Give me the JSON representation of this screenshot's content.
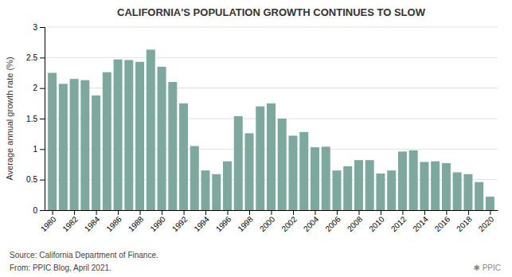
{
  "chart_data": {
    "type": "bar",
    "title": "CALIFORNIA'S POPULATION GROWTH CONTINUES TO SLOW",
    "ylabel": "Average annual growth rate (%)",
    "annotations": [
      "Source: California Department of Finance.",
      "From: PPIC Blog, April 2021.",
      "✱ PPIC"
    ],
    "color": "#7da89e",
    "x": [
      1980,
      1981,
      1982,
      1983,
      1984,
      1985,
      1986,
      1987,
      1988,
      1989,
      1990,
      1991,
      1992,
      1993,
      1994,
      1995,
      1996,
      1997,
      1998,
      1999,
      2000,
      2001,
      2002,
      2003,
      2004,
      2005,
      2006,
      2007,
      2008,
      2009,
      2010,
      2011,
      2012,
      2013,
      2014,
      2015,
      2016,
      2017,
      2018,
      2019,
      2020
    ],
    "values": [
      2.25,
      2.07,
      2.15,
      2.13,
      1.88,
      2.26,
      2.47,
      2.46,
      2.43,
      2.63,
      2.35,
      2.1,
      1.75,
      1.05,
      0.65,
      0.59,
      0.8,
      1.54,
      1.26,
      1.7,
      1.75,
      1.5,
      1.22,
      1.28,
      1.03,
      1.04,
      0.65,
      0.72,
      0.82,
      0.82,
      0.6,
      0.65,
      0.96,
      0.98,
      0.79,
      0.8,
      0.77,
      0.62,
      0.59,
      0.46,
      0.22
    ],
    "xlim": [
      1979.3,
      2020.7
    ],
    "xticks": [
      1980,
      1982,
      1984,
      1986,
      1988,
      1990,
      1992,
      1994,
      1996,
      1998,
      2000,
      2002,
      2004,
      2006,
      2008,
      2010,
      2012,
      2014,
      2016,
      2018,
      2020
    ],
    "ylim": [
      0,
      3.0
    ],
    "yticks": [
      0,
      0.5,
      1,
      1.5,
      2,
      2.5,
      3
    ],
    "grid": true
  }
}
